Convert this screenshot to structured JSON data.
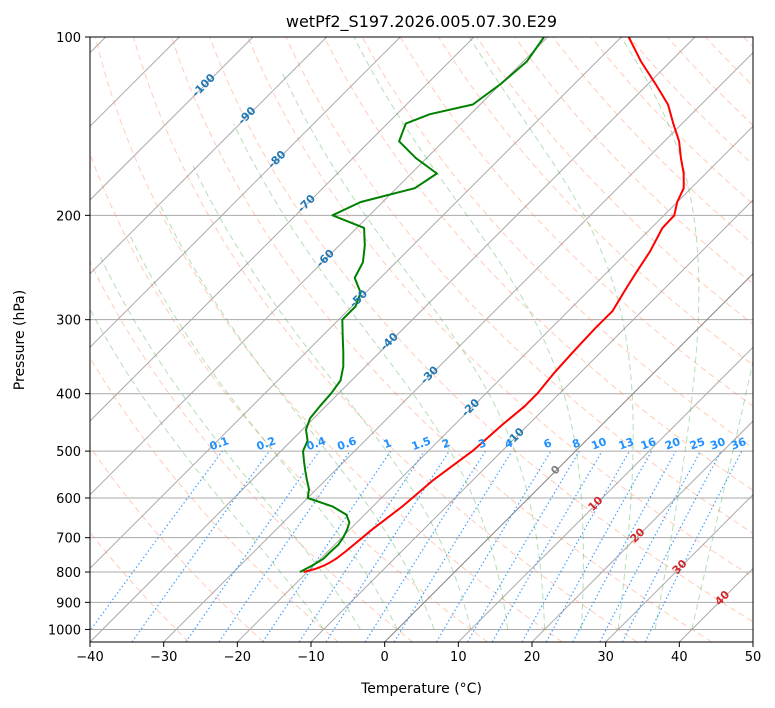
{
  "chart_data": {
    "type": "line",
    "subtype": "skew-t log-p",
    "title": "wetPf2_S197.2026.005.07.30.E29",
    "xlabel": "Temperature (°C)",
    "ylabel": "Pressure (hPa)",
    "xlim": [
      -40,
      50
    ],
    "ylim": [
      1050,
      100
    ],
    "y_scale": "log",
    "skew": 45,
    "grid": true,
    "x_ticks": [
      -40,
      -30,
      -20,
      -10,
      0,
      10,
      20,
      30,
      40,
      50
    ],
    "y_ticks": [
      100,
      200,
      300,
      400,
      500,
      600,
      700,
      800,
      900,
      1000
    ],
    "colors": {
      "temperature": "#ff0000",
      "dewpoint": "#008000",
      "isotherm_label": "#1f77b4",
      "mixing_ratio": "#1e90ff",
      "dry_adiabat": "#ff7f50",
      "moist_adiabat": "#2ca02c",
      "grid": "#aaaaaa",
      "zero_isotherm": "#808080",
      "isotherm_label_warm": "#d62728"
    },
    "isotherm_labels": [
      {
        "t": -100,
        "p": 120
      },
      {
        "t": -90,
        "p": 135
      },
      {
        "t": -80,
        "p": 160
      },
      {
        "t": -70,
        "p": 190
      },
      {
        "t": -60,
        "p": 235
      },
      {
        "t": -50,
        "p": 275
      },
      {
        "t": -40,
        "p": 325
      },
      {
        "t": -30,
        "p": 370
      },
      {
        "t": -20,
        "p": 420
      },
      {
        "t": -10,
        "p": 470
      },
      {
        "t": 0,
        "p": 535
      },
      {
        "t": 10,
        "p": 610
      },
      {
        "t": 20,
        "p": 690
      },
      {
        "t": 30,
        "p": 780
      },
      {
        "t": 40,
        "p": 880
      }
    ],
    "mixing_ratio_labels": [
      "0.1",
      "0.2",
      "0.4",
      "0.6",
      "1",
      "1.5",
      "2",
      "3",
      "4",
      "6",
      "8",
      "10",
      "13",
      "16",
      "20",
      "25",
      "30",
      "36"
    ],
    "mixing_ratio_label_pressure": 500,
    "series": [
      {
        "role": "temperature",
        "points": [
          [
            800,
            -20.5
          ],
          [
            790,
            -19.3
          ],
          [
            780,
            -18.6
          ],
          [
            770,
            -18.2
          ],
          [
            760,
            -17.9
          ],
          [
            740,
            -17.6
          ],
          [
            720,
            -17.4
          ],
          [
            700,
            -17.2
          ],
          [
            680,
            -17.0
          ],
          [
            650,
            -16.5
          ],
          [
            620,
            -16.0
          ],
          [
            600,
            -15.8
          ],
          [
            560,
            -15.4
          ],
          [
            520,
            -14.5
          ],
          [
            500,
            -14.0
          ],
          [
            480,
            -13.8
          ],
          [
            450,
            -13.5
          ],
          [
            420,
            -13.0
          ],
          [
            400,
            -13.0
          ],
          [
            370,
            -13.5
          ],
          [
            340,
            -13.8
          ],
          [
            310,
            -14.0
          ],
          [
            290,
            -14.0
          ],
          [
            270,
            -15.0
          ],
          [
            250,
            -16.0
          ],
          [
            230,
            -17.0
          ],
          [
            210,
            -18.5
          ],
          [
            200,
            -18.6
          ],
          [
            190,
            -20.0
          ],
          [
            180,
            -21.0
          ],
          [
            170,
            -23.0
          ],
          [
            160,
            -25.5
          ],
          [
            150,
            -28.0
          ],
          [
            140,
            -31.2
          ],
          [
            130,
            -34.5
          ],
          [
            120,
            -39.0
          ],
          [
            110,
            -44.0
          ],
          [
            100,
            -49.0
          ]
        ]
      },
      {
        "role": "dewpoint",
        "points": [
          [
            800,
            -21.0
          ],
          [
            780,
            -20.2
          ],
          [
            760,
            -19.6
          ],
          [
            740,
            -19.6
          ],
          [
            720,
            -19.5
          ],
          [
            700,
            -19.8
          ],
          [
            680,
            -20.3
          ],
          [
            660,
            -21.0
          ],
          [
            640,
            -22.5
          ],
          [
            620,
            -25.5
          ],
          [
            600,
            -30.0
          ],
          [
            580,
            -31.0
          ],
          [
            560,
            -32.5
          ],
          [
            540,
            -34.0
          ],
          [
            520,
            -35.5
          ],
          [
            500,
            -37.0
          ],
          [
            480,
            -37.8
          ],
          [
            460,
            -39.5
          ],
          [
            440,
            -40.5
          ],
          [
            420,
            -40.8
          ],
          [
            400,
            -41.0
          ],
          [
            380,
            -41.5
          ],
          [
            360,
            -43.0
          ],
          [
            340,
            -45.0
          ],
          [
            320,
            -47.2
          ],
          [
            300,
            -49.5
          ],
          [
            285,
            -49.5
          ],
          [
            270,
            -50.7
          ],
          [
            255,
            -53.5
          ],
          [
            240,
            -54.5
          ],
          [
            225,
            -56.5
          ],
          [
            210,
            -59.0
          ],
          [
            200,
            -65.0
          ],
          [
            190,
            -63.0
          ],
          [
            180,
            -57.5
          ],
          [
            170,
            -56.5
          ],
          [
            160,
            -61.5
          ],
          [
            150,
            -66.0
          ],
          [
            140,
            -67.5
          ],
          [
            135,
            -65.5
          ],
          [
            130,
            -61.0
          ],
          [
            120,
            -60.0
          ],
          [
            110,
            -59.5
          ],
          [
            100,
            -60.5
          ]
        ]
      }
    ]
  }
}
